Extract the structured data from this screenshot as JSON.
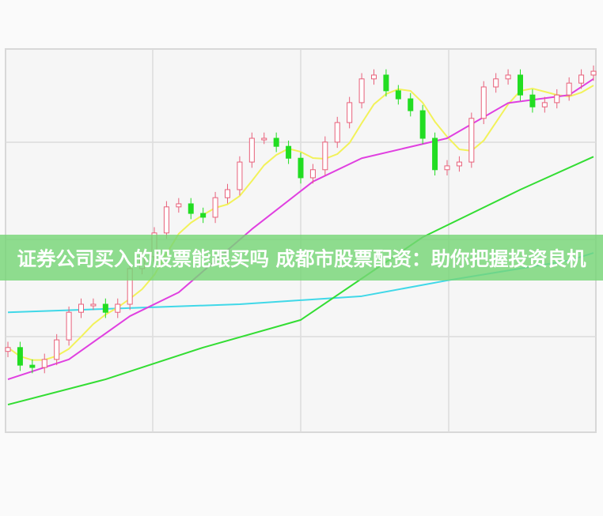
{
  "banner": {
    "title": "证券公司买入的股票能跟买吗 成都市股票配资：助你把握投资良机"
  },
  "chart_data": {
    "type": "candlestick",
    "grid": true,
    "ylim": [
      0,
      100
    ],
    "colors": {
      "up": "#e8607a",
      "down": "#22dd22",
      "ma_short": "#f2f25a",
      "ma_mid": "#e040e0",
      "ma_cyan": "#40d8e8",
      "ma_long": "#33dd33"
    },
    "closes": [
      22.1,
      17.5,
      16.9,
      19.0,
      24.1,
      31.3,
      33.4,
      33.4,
      31.3,
      33.4,
      42.7,
      45.8,
      52.0,
      58.8,
      59.6,
      57.1,
      56.1,
      61.2,
      63.3,
      70.5,
      76.7,
      76.7,
      74.6,
      71.5,
      66.4,
      68.5,
      75.7,
      80.8,
      86.0,
      92.2,
      93.2,
      89.1,
      87.0,
      83.9,
      76.7,
      68.5,
      69.5,
      70.5,
      81.9,
      90.1,
      92.2,
      93.2,
      88.0,
      84.9,
      86.0,
      88.0,
      91.1,
      93.2,
      94.2
    ],
    "moving_averages": [
      {
        "color_key": "ma_mid",
        "points": [
          [
            0,
            13.8
          ],
          [
            5,
            19.0
          ],
          [
            10,
            30.3
          ],
          [
            14,
            36.5
          ],
          [
            20,
            53.0
          ],
          [
            25,
            65.4
          ],
          [
            29,
            71.5
          ],
          [
            36,
            76.7
          ],
          [
            41,
            85.9
          ],
          [
            46,
            88.0
          ],
          [
            48,
            92.2
          ]
        ]
      },
      {
        "color_key": "ma_cyan",
        "points": [
          [
            0,
            31.3
          ],
          [
            19,
            33.4
          ],
          [
            29,
            35.5
          ],
          [
            36,
            39.6
          ],
          [
            46,
            44.8
          ],
          [
            48,
            46.8
          ]
        ]
      },
      {
        "color_key": "ma_long",
        "points": [
          [
            0,
            7.2
          ],
          [
            8,
            13.8
          ],
          [
            16,
            22.1
          ],
          [
            24,
            29.3
          ],
          [
            34,
            50.9
          ],
          [
            42,
            63.3
          ],
          [
            48,
            71.9
          ]
        ]
      }
    ]
  }
}
